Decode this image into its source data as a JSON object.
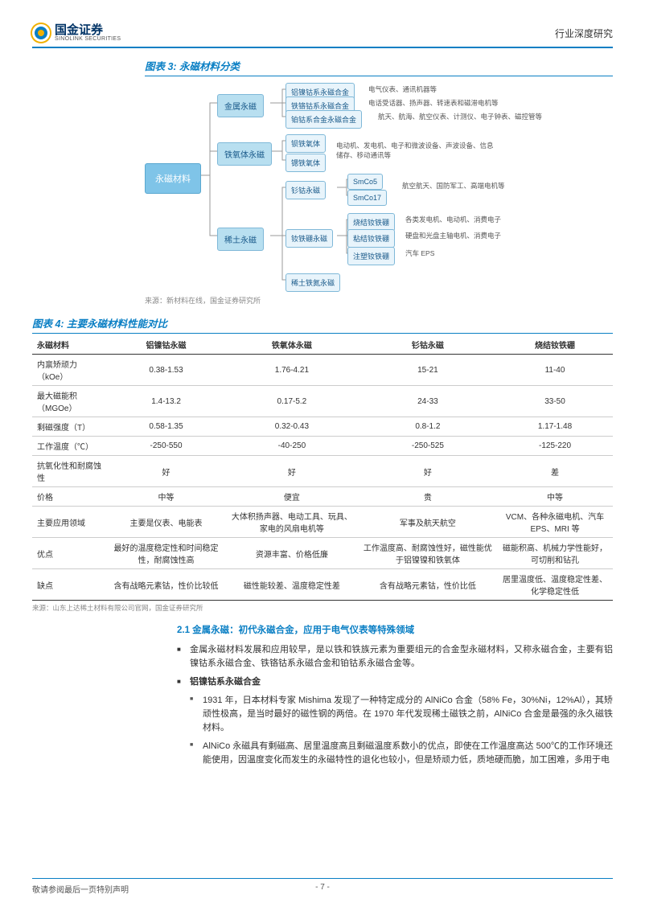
{
  "header": {
    "logo_cn": "国金证券",
    "logo_en": "SINOLINK SECURITIES",
    "right": "行业深度研究"
  },
  "fig3": {
    "title": "图表 3:  永磁材料分类",
    "source": "来源：新材料在线，国金证券研究所",
    "root": "永磁材料",
    "cat1": "金属永磁",
    "cat1_sub1": "铝镍钴系永磁合金",
    "cat1_sub1_desc": "电气仪表、通讯机器等",
    "cat1_sub2": "铁铬钴系永磁合金",
    "cat1_sub2_desc": "电话受话器、扬声器、转速表和磁滞电机等",
    "cat1_sub3": "铂钴系合金永磁合金",
    "cat1_sub3_desc": "航天、航海、航空仪表、计测仪、电子钟表、磁控管等",
    "cat2": "铁氧体永磁",
    "cat2_sub1": "钡铁氧体",
    "cat2_sub2": "锶铁氧体",
    "cat2_desc": "电动机、发电机、电子和微波设备、声波设备、信息储存、移动通讯等",
    "cat3": "稀土永磁",
    "cat3_sub1": "钐钴永磁",
    "cat3_sub1a": "SmCo5",
    "cat3_sub1b": "SmCo17",
    "cat3_sub1_desc": "航空航天、国防军工、高端电机等",
    "cat3_sub2": "钕铁硼永磁",
    "cat3_sub2a": "烧结钕铁硼",
    "cat3_sub2a_desc": "各类发电机、电动机、消费电子",
    "cat3_sub2b": "粘结钕铁硼",
    "cat3_sub2b_desc": "硬盘和光盘主轴电机、消费电子",
    "cat3_sub2c": "注塑钕铁硼",
    "cat3_sub2c_desc": "汽车 EPS",
    "cat3_sub3": "稀土铁氮永磁"
  },
  "fig4": {
    "title": "图表 4:  主要永磁材料性能对比",
    "source": "来源：山东上达稀土材料有限公司官网，国金证券研究所",
    "headers": [
      "永磁材料",
      "铝镍钴永磁",
      "铁氧体永磁",
      "钐钴永磁",
      "烧结钕铁硼"
    ],
    "rows": [
      [
        "内禀矫顽力（kOe）",
        "0.38-1.53",
        "1.76-4.21",
        "15-21",
        "11-40"
      ],
      [
        "最大磁能积（MGOe）",
        "1.4-13.2",
        "0.17-5.2",
        "24-33",
        "33-50"
      ],
      [
        "剩磁强度（T）",
        "0.58-1.35",
        "0.32-0.43",
        "0.8-1.2",
        "1.17-1.48"
      ],
      [
        "工作温度（℃）",
        "-250-550",
        "-40-250",
        "-250-525",
        "-125-220"
      ],
      [
        "抗氧化性和耐腐蚀性",
        "好",
        "好",
        "好",
        "差"
      ],
      [
        "价格",
        "中等",
        "便宜",
        "贵",
        "中等"
      ],
      [
        "主要应用领域",
        "主要是仪表、电能表",
        "大体积扬声器、电动工具、玩具、家电的风扇电机等",
        "军事及航天航空",
        "VCM、各种永磁电机、汽车 EPS、MRI 等"
      ],
      [
        "优点",
        "最好的温度稳定性和时间稳定性，耐腐蚀性高",
        "资源丰富、价格低廉",
        "工作温度高、耐腐蚀性好，磁性能优于铝镍镍和铁氧体",
        "磁能积高、机械力学性能好，可切削和钻孔"
      ],
      [
        "缺点",
        "含有战略元素钴，性价比较低",
        "磁性能较差、温度稳定性差",
        "含有战略元素钴，性价比低",
        "居里温度低、温度稳定性差、化学稳定性低"
      ]
    ]
  },
  "body": {
    "section_title": "2.1 金属永磁：初代永磁合金，应用于电气仪表等特殊领域",
    "p1": "金属永磁材料发展和应用较早，是以铁和铁族元素为重要组元的合金型永磁材料，又称永磁合金，主要有铝镍钴系永磁合金、铁铬钴系永磁合金和铂钴系永磁合金等。",
    "p2_title": "铝镍钴系永磁合金",
    "p2a": "1931 年，日本材料专家 Mishima 发现了一种特定成分的 AlNiCo 合金（58% Fe，30%Ni，12%Al），其矫顽性极高，是当时最好的磁性钢的两倍。在 1970 年代发现稀土磁铁之前，AlNiCo 合金是最强的永久磁铁材料。",
    "p2b": "AlNiCo 永磁具有剩磁高、居里温度高且剩磁温度系数小的优点，即使在工作温度高达 500℃的工作环境还能使用，因温度变化而发生的永磁特性的退化也较小，但是矫顽力低，质地硬而脆，加工困难，多用于电"
  },
  "footer": {
    "left": "敬请参阅最后一页特别声明",
    "page": "- 7 -"
  }
}
